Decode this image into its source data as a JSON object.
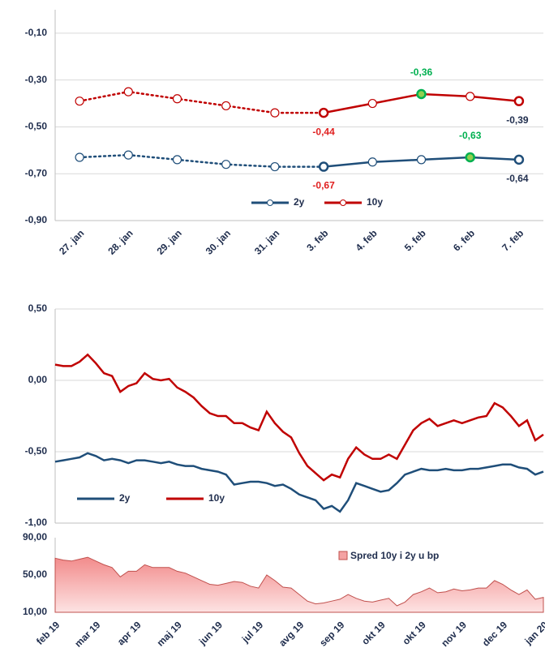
{
  "chart_data": [
    {
      "type": "line",
      "markers": true,
      "grid": true,
      "categories": [
        "27. jan",
        "28. jan",
        "29. jan",
        "30. jan",
        "31. jan",
        "3. feb",
        "4. feb",
        "5. feb",
        "6. feb",
        "7. feb"
      ],
      "series": [
        {
          "name": "2y",
          "color": "#1f4e79",
          "values": [
            -0.63,
            -0.62,
            -0.64,
            -0.66,
            -0.67,
            -0.67,
            -0.65,
            -0.64,
            -0.63,
            -0.64
          ],
          "value_labels": [
            null,
            null,
            null,
            null,
            null,
            "-0,67",
            null,
            null,
            "-0,63",
            "-0,64"
          ],
          "value_label_colors": [
            null,
            null,
            null,
            null,
            null,
            "#e02020",
            null,
            null,
            "#00b050",
            "#1f2d4d"
          ]
        },
        {
          "name": "10y",
          "color": "#c00000",
          "values": [
            -0.39,
            -0.35,
            -0.38,
            -0.41,
            -0.44,
            -0.44,
            -0.4,
            -0.36,
            -0.37,
            -0.39
          ],
          "value_labels": [
            null,
            null,
            null,
            null,
            null,
            "-0,44",
            null,
            "-0,36",
            null,
            "-0,39"
          ],
          "value_label_colors": [
            null,
            null,
            null,
            null,
            null,
            "#e02020",
            null,
            "#00b050",
            null,
            "#1f2d4d"
          ]
        }
      ],
      "ylim": [
        -0.9,
        0.0
      ],
      "yticks": [
        {
          "value": -0.9,
          "label": "-0,90"
        },
        {
          "value": -0.7,
          "label": "-0,70"
        },
        {
          "value": -0.5,
          "label": "-0,50"
        },
        {
          "value": -0.3,
          "label": "-0,30"
        },
        {
          "value": -0.1,
          "label": "-0,10"
        }
      ]
    },
    {
      "type": "line",
      "grid": true,
      "series": [
        {
          "name": "2y",
          "color": "#1f4e79",
          "values": [
            -0.57,
            -0.56,
            -0.55,
            -0.54,
            -0.51,
            -0.53,
            -0.56,
            -0.55,
            -0.56,
            -0.58,
            -0.56,
            -0.56,
            -0.57,
            -0.58,
            -0.57,
            -0.59,
            -0.6,
            -0.6,
            -0.62,
            -0.63,
            -0.64,
            -0.66,
            -0.73,
            -0.72,
            -0.71,
            -0.71,
            -0.72,
            -0.74,
            -0.73,
            -0.76,
            -0.8,
            -0.82,
            -0.84,
            -0.9,
            -0.88,
            -0.92,
            -0.84,
            -0.72,
            -0.74,
            -0.76,
            -0.78,
            -0.77,
            -0.72,
            -0.66,
            -0.64,
            -0.62,
            -0.63,
            -0.63,
            -0.62,
            -0.63,
            -0.63,
            -0.62,
            -0.62,
            -0.61,
            -0.6,
            -0.59,
            -0.59,
            -0.61,
            -0.62,
            -0.66,
            -0.64
          ]
        },
        {
          "name": "10y",
          "color": "#c00000",
          "values": [
            0.11,
            0.1,
            0.1,
            0.13,
            0.18,
            0.12,
            0.05,
            0.03,
            -0.08,
            -0.04,
            -0.02,
            0.05,
            0.01,
            0.0,
            0.01,
            -0.05,
            -0.08,
            -0.12,
            -0.18,
            -0.23,
            -0.25,
            -0.25,
            -0.3,
            -0.3,
            -0.33,
            -0.35,
            -0.22,
            -0.3,
            -0.36,
            -0.4,
            -0.51,
            -0.6,
            -0.65,
            -0.7,
            -0.66,
            -0.68,
            -0.55,
            -0.47,
            -0.52,
            -0.55,
            -0.55,
            -0.52,
            -0.55,
            -0.45,
            -0.35,
            -0.3,
            -0.27,
            -0.32,
            -0.3,
            -0.28,
            -0.3,
            -0.28,
            -0.26,
            -0.25,
            -0.16,
            -0.19,
            -0.25,
            -0.32,
            -0.28,
            -0.42,
            -0.38
          ]
        }
      ],
      "ylim": [
        -1.0,
        0.5
      ],
      "yticks": [
        {
          "value": -1.0,
          "label": "-1,00"
        },
        {
          "value": -0.5,
          "label": "-0,50"
        },
        {
          "value": 0.0,
          "label": "0,00"
        },
        {
          "value": 0.5,
          "label": "0,50"
        }
      ]
    },
    {
      "type": "area",
      "grid": false,
      "categories": [
        "feb 19",
        null,
        null,
        null,
        null,
        "mar 19",
        null,
        null,
        null,
        null,
        "apr 19",
        null,
        null,
        null,
        null,
        "maj 19",
        null,
        null,
        null,
        null,
        "jun 19",
        null,
        null,
        null,
        null,
        "jul 19",
        null,
        null,
        null,
        null,
        "avg 19",
        null,
        null,
        null,
        null,
        "sep 19",
        null,
        null,
        null,
        null,
        "okt 19",
        null,
        null,
        null,
        null,
        "okt 19",
        null,
        null,
        null,
        null,
        "nov 19",
        null,
        null,
        null,
        null,
        "dec 19",
        null,
        null,
        null,
        null,
        "jan 20"
      ],
      "series": [
        {
          "name": "Spred 10y i 2y u bp",
          "color": "#f4a3a3",
          "values": [
            68,
            66,
            65,
            67,
            69,
            65,
            61,
            58,
            48,
            54,
            54,
            61,
            58,
            58,
            58,
            54,
            52,
            48,
            44,
            40,
            39,
            41,
            43,
            42,
            38,
            36,
            50,
            44,
            37,
            36,
            29,
            22,
            19,
            20,
            22,
            24,
            29,
            25,
            22,
            21,
            23,
            25,
            17,
            21,
            29,
            32,
            36,
            31,
            32,
            35,
            33,
            34,
            36,
            36,
            44,
            40,
            34,
            29,
            34,
            24,
            26
          ]
        }
      ],
      "ylim": [
        10,
        90
      ],
      "yticks": [
        {
          "value": 10,
          "label": "10,00"
        },
        {
          "value": 50,
          "label": "50,00"
        },
        {
          "value": 90,
          "label": "90,00"
        }
      ]
    }
  ]
}
